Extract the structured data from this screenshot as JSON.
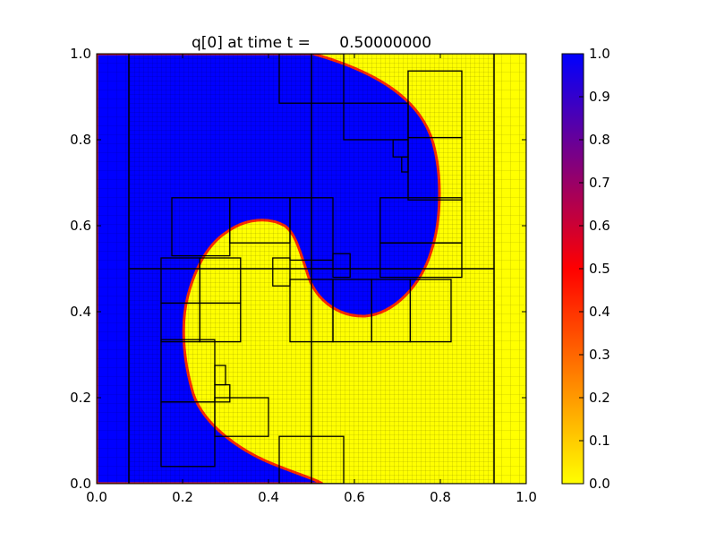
{
  "chart_data": {
    "type": "heatmap",
    "title": "q[0] at time t =      0.50000000",
    "xlabel": "",
    "ylabel": "",
    "xlim": [
      0.0,
      1.0
    ],
    "ylim": [
      0.0,
      1.0
    ],
    "x_ticks": [
      "0.0",
      "0.2",
      "0.4",
      "0.6",
      "0.8",
      "1.0"
    ],
    "y_ticks": [
      "0.0",
      "0.2",
      "0.4",
      "0.6",
      "0.8",
      "1.0"
    ],
    "grid": false,
    "colormap": {
      "name": "blue-red-yellow",
      "range": [
        0.0,
        1.0
      ],
      "stops": [
        {
          "value": 0.0,
          "color": "#ffff00"
        },
        {
          "value": 0.5,
          "color": "#ff0000"
        },
        {
          "value": 1.0,
          "color": "#0000ff"
        }
      ],
      "ticks": [
        "0.0",
        "0.1",
        "0.2",
        "0.3",
        "0.4",
        "0.5",
        "0.6",
        "0.7",
        "0.8",
        "0.9",
        "1.0"
      ]
    },
    "field": "q[0]",
    "time": "0.50000000",
    "field_description": "value 1.0 (blue) region and value 0.0 (yellow) region separated by a spiral interface",
    "refinement_patches": [
      [
        0.0,
        0.075,
        0.0,
        1.0
      ],
      [
        0.075,
        0.5,
        0.5,
        1.0
      ],
      [
        0.075,
        0.5,
        0.0,
        0.5
      ],
      [
        0.5,
        0.925,
        0.5,
        1.0
      ],
      [
        0.5,
        0.925,
        0.0,
        0.5
      ],
      [
        0.925,
        1.0,
        0.0,
        1.0
      ],
      [
        0.425,
        0.575,
        0.885,
        1.0
      ],
      [
        0.575,
        0.725,
        0.8,
        0.885
      ],
      [
        0.725,
        0.85,
        0.805,
        0.96
      ],
      [
        0.69,
        0.725,
        0.76,
        0.8
      ],
      [
        0.71,
        0.725,
        0.725,
        0.76
      ],
      [
        0.725,
        0.85,
        0.66,
        0.805
      ],
      [
        0.175,
        0.31,
        0.53,
        0.665
      ],
      [
        0.31,
        0.45,
        0.56,
        0.665
      ],
      [
        0.45,
        0.55,
        0.52,
        0.665
      ],
      [
        0.15,
        0.24,
        0.42,
        0.525
      ],
      [
        0.24,
        0.335,
        0.42,
        0.525
      ],
      [
        0.41,
        0.45,
        0.46,
        0.525
      ],
      [
        0.55,
        0.59,
        0.48,
        0.535
      ],
      [
        0.66,
        0.85,
        0.56,
        0.665
      ],
      [
        0.66,
        0.85,
        0.48,
        0.56
      ],
      [
        0.15,
        0.24,
        0.33,
        0.42
      ],
      [
        0.24,
        0.335,
        0.33,
        0.42
      ],
      [
        0.45,
        0.55,
        0.33,
        0.475
      ],
      [
        0.55,
        0.64,
        0.33,
        0.475
      ],
      [
        0.64,
        0.73,
        0.33,
        0.475
      ],
      [
        0.73,
        0.825,
        0.33,
        0.475
      ],
      [
        0.15,
        0.275,
        0.19,
        0.335
      ],
      [
        0.275,
        0.3,
        0.23,
        0.275
      ],
      [
        0.275,
        0.31,
        0.19,
        0.23
      ],
      [
        0.15,
        0.275,
        0.04,
        0.19
      ],
      [
        0.275,
        0.4,
        0.11,
        0.2
      ],
      [
        0.425,
        0.575,
        0.0,
        0.11
      ]
    ]
  }
}
